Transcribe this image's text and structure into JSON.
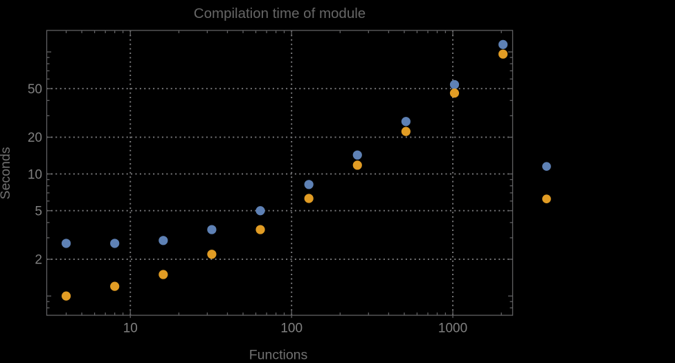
{
  "window": {
    "background": "#000000"
  },
  "chart_data": {
    "type": "scatter",
    "title": "Compilation time of module",
    "xlabel": "Functions",
    "ylabel": "Seconds",
    "x_scale": "log",
    "y_scale": "log",
    "xlim": [
      3.03,
      2350
    ],
    "ylim": [
      0.695,
      150
    ],
    "grid": "dotted",
    "x": [
      4,
      8,
      16,
      32,
      64,
      128,
      256,
      512,
      1024,
      2048
    ],
    "series": [
      {
        "name": "series-1-blue",
        "color": "#5E81B5",
        "values": [
          2.7,
          2.7,
          2.85,
          3.5,
          5.0,
          8.2,
          14.3,
          26.9,
          54,
          115
        ]
      },
      {
        "name": "series-2-orange",
        "color": "#E19C24",
        "values": [
          1.0,
          1.2,
          1.5,
          2.2,
          3.5,
          6.3,
          11.8,
          22.3,
          46,
          96
        ]
      }
    ],
    "axes": {
      "x_tick_labels": [
        "10",
        "100",
        "1000"
      ],
      "x_major": [
        10,
        100,
        1000
      ],
      "x_minor": [
        4,
        5,
        6,
        7,
        8,
        9,
        20,
        30,
        40,
        50,
        60,
        70,
        80,
        90,
        200,
        300,
        400,
        500,
        600,
        700,
        800,
        900,
        2000
      ],
      "y_tick_labels": [
        "2",
        "5",
        "10",
        "20",
        "50"
      ],
      "y_major_labeled": [
        2,
        5,
        10,
        20,
        50
      ],
      "y_major_unlabeled": [
        1,
        100
      ],
      "y_minor": [
        0.8,
        0.9,
        3,
        4,
        6,
        7,
        8,
        9,
        30,
        40,
        60,
        70,
        80,
        90
      ],
      "x_gridlines": [
        10,
        100,
        1000
      ],
      "y_gridlines": [
        2,
        5,
        10,
        20,
        50
      ]
    },
    "legend_position": "right-outside",
    "legend": [
      {
        "label": "",
        "color": "#5E81B5"
      },
      {
        "label": "",
        "color": "#E19C24"
      }
    ]
  },
  "colors": {
    "background": "#000000",
    "title": "#666666",
    "axis_label": "#717171",
    "tick_label": "#808080",
    "frame": "#616163",
    "grid": "#7e7e80",
    "series1": "#5E81B5",
    "series2": "#E19C24"
  }
}
